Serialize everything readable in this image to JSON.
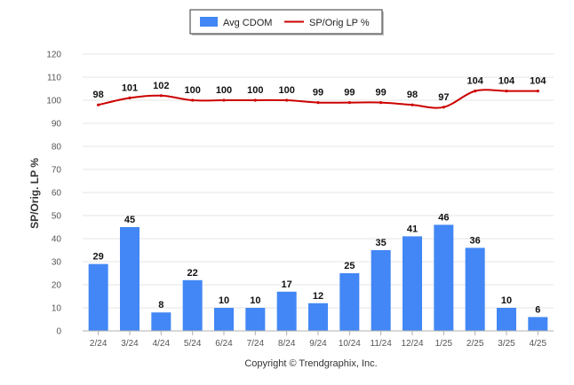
{
  "chart_data": {
    "type": "bar",
    "ylabel": "SP/Orig. LP %",
    "ylim": [
      0,
      120
    ],
    "yticks": [
      0,
      10,
      20,
      30,
      40,
      50,
      60,
      70,
      80,
      90,
      100,
      110,
      120
    ],
    "grid": true,
    "legend_position": "top-center",
    "categories": [
      "2/24",
      "3/24",
      "4/24",
      "5/24",
      "6/24",
      "7/24",
      "8/24",
      "9/24",
      "10/24",
      "11/24",
      "12/24",
      "1/25",
      "2/25",
      "3/25",
      "4/25"
    ],
    "series": [
      {
        "name": "Avg CDOM",
        "type": "bar",
        "color": "#4287f5",
        "values": [
          29,
          45,
          8,
          22,
          10,
          10,
          17,
          12,
          25,
          35,
          41,
          46,
          36,
          10,
          6
        ]
      },
      {
        "name": "SP/Orig LP %",
        "type": "line",
        "color": "#cc0000",
        "values": [
          98,
          101,
          102,
          100,
          100,
          100,
          100,
          99,
          99,
          99,
          98,
          97,
          104,
          104,
          104
        ]
      }
    ]
  },
  "footer": {
    "copyright": "Copyright © Trendgraphix, Inc."
  }
}
